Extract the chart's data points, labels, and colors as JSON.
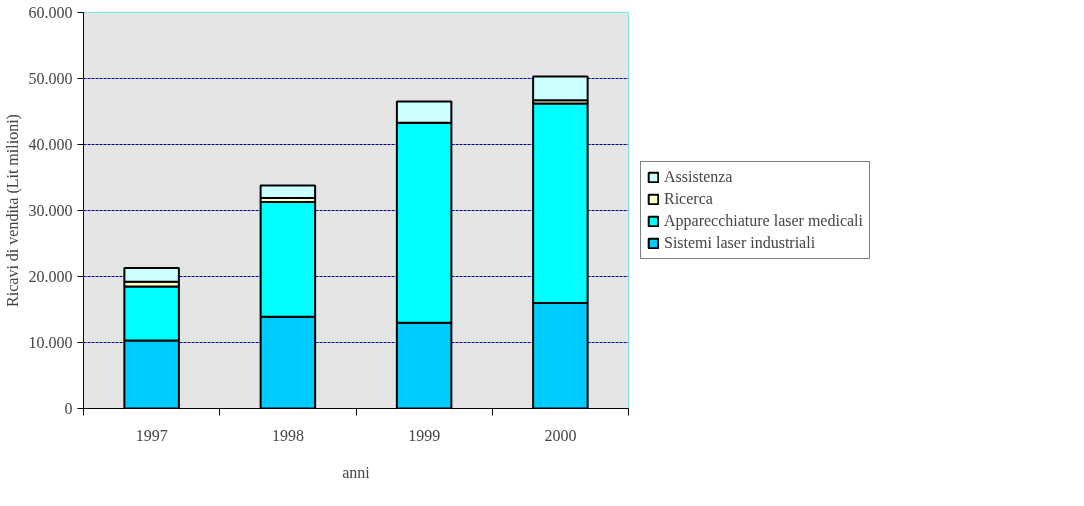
{
  "chart_data": {
    "type": "bar",
    "stacked": true,
    "xlabel": "anni",
    "ylabel": "Ricavi di vendita (Lit milioni)",
    "categories": [
      "1997",
      "1998",
      "1999",
      "2000"
    ],
    "series": [
      {
        "name": "Sistemi laser industriali",
        "color": "#00ccff",
        "values": [
          10300,
          13900,
          13000,
          16000
        ]
      },
      {
        "name": "Apparecchiature laser medicali",
        "color": "#00ffff",
        "values": [
          8200,
          17400,
          30300,
          30200
        ]
      },
      {
        "name": "Ricerca",
        "color": "#ffffcc",
        "values": [
          700,
          600,
          0,
          500
        ]
      },
      {
        "name": "Assistenza",
        "color": "#ccffff",
        "values": [
          2100,
          1900,
          3200,
          3600
        ]
      }
    ],
    "ylim": [
      0,
      60000
    ],
    "yticks": [
      0,
      {
        "value": 10000,
        "label": "10.000"
      },
      {
        "value": 20000,
        "label": "20.000"
      },
      {
        "value": 30000,
        "label": "30.000"
      },
      {
        "value": 40000,
        "label": "40.000"
      },
      {
        "value": 50000,
        "label": "50.000"
      },
      {
        "value": 60000,
        "label": "60.000"
      }
    ],
    "grid": "y",
    "legend": "right"
  }
}
